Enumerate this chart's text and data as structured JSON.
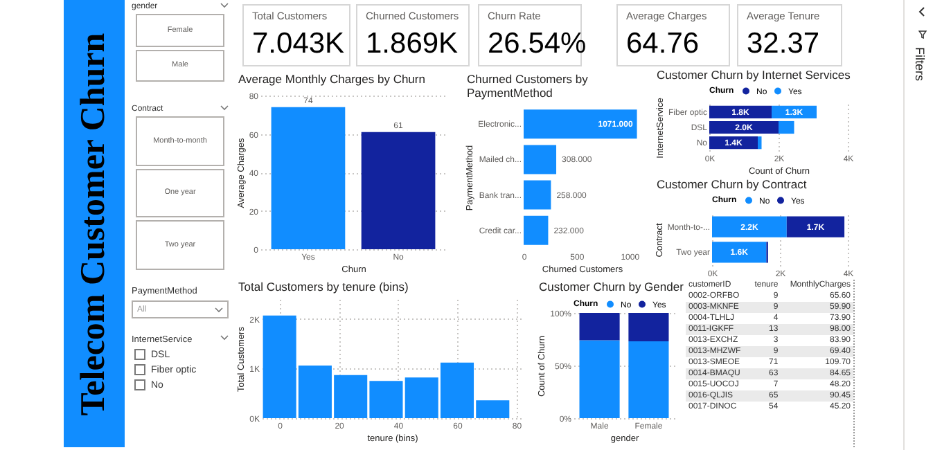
{
  "chart_data": [
    {
      "type": "other",
      "title": "Telecom Customer Churn"
    },
    {
      "type": "other",
      "title": "gender",
      "categories": [
        "Female",
        "Male"
      ]
    },
    {
      "type": "other",
      "title": "Contract",
      "categories": [
        "Month-to-month",
        "One year",
        "Two year"
      ]
    },
    {
      "type": "other",
      "title": "PaymentMethod",
      "categories": [
        "All"
      ]
    },
    {
      "type": "other",
      "title": "InternetService",
      "categories": [
        "DSL",
        "Fiber optic",
        "No"
      ]
    },
    {
      "type": "other",
      "title": "Total Customers",
      "annotations": [
        "7.043K"
      ]
    },
    {
      "type": "other",
      "title": "Churned Customers",
      "annotations": [
        "1.869K"
      ]
    },
    {
      "type": "other",
      "title": "Churn Rate",
      "annotations": [
        "26.54%"
      ]
    },
    {
      "type": "other",
      "title": "Average Charges",
      "annotations": [
        "64.76"
      ]
    },
    {
      "type": "other",
      "title": "Average Tenure",
      "annotations": [
        "32.37"
      ]
    },
    {
      "type": "bar",
      "title": "Average Monthly Charges by Churn",
      "categories": [
        "Yes",
        "No"
      ],
      "values": [
        74,
        61
      ],
      "colors": [
        "#118dff",
        "#12239e"
      ],
      "data_labels": true,
      "ylim": [
        0,
        80
      ],
      "yticks": [
        0,
        20,
        40,
        60,
        80
      ],
      "grid": "y",
      "xlabel": "Churn",
      "ylabel": "Average Charges"
    },
    {
      "type": "bar",
      "title": "Churned Customers by PaymentMethod",
      "orientation": "horizontal",
      "categories": [
        "Electronic...",
        "Mailed ch...",
        "Bank tran...",
        "Credit car..."
      ],
      "values": [
        1071,
        308,
        258,
        232
      ],
      "value_labels": [
        "1071.000",
        "308.000",
        "258.000",
        "232.000"
      ],
      "color": "#118dff",
      "xlim": [
        0,
        1100
      ],
      "xticks": [
        0,
        500,
        {
          "value": 1000,
          "label": "1000"
        }
      ],
      "xlabel": "Churned Customers",
      "ylabel": "PaymentMethod"
    },
    {
      "type": "bar",
      "title": "Customer Churn by Internet Services",
      "orientation": "horizontal",
      "stacked": true,
      "categories": [
        "Fiber optic",
        "DSL",
        "No"
      ],
      "series": [
        {
          "name": "No",
          "color": "#12239e",
          "values": [
            1800,
            2000,
            1400
          ],
          "value_labels": [
            "1.8K",
            "2.0K",
            "1.4K"
          ]
        },
        {
          "name": "Yes",
          "color": "#118dff",
          "values": [
            1300,
            450,
            110
          ],
          "value_labels": [
            "1.3K",
            null,
            null
          ]
        }
      ],
      "xlim": [
        0,
        4000
      ],
      "xticks": [
        {
          "value": 0,
          "label": "0K"
        },
        {
          "value": 2000,
          "label": "2K"
        },
        {
          "value": 4000,
          "label": "4K"
        }
      ],
      "grid": "x",
      "xlabel": "Count of Churn",
      "ylabel": "InternetService",
      "legend_title": "Churn",
      "legend": "top left"
    },
    {
      "type": "bar",
      "title": "Customer Churn by Contract",
      "orientation": "horizontal",
      "stacked": true,
      "categories": [
        "Month-to-...",
        "Two year"
      ],
      "series": [
        {
          "name": "No",
          "color": "#118dff",
          "values": [
            2200,
            1600
          ],
          "value_labels": [
            "2.2K",
            "1.6K"
          ]
        },
        {
          "name": "Yes",
          "color": "#12239e",
          "values": [
            1700,
            50
          ],
          "value_labels": [
            "1.7K",
            null
          ]
        }
      ],
      "xlim": [
        0,
        4000
      ],
      "xticks": [
        {
          "value": 0,
          "label": "0K"
        },
        {
          "value": 2000,
          "label": "2K"
        },
        {
          "value": 4000,
          "label": "4K"
        }
      ],
      "grid": "x",
      "ylabel": "Contract",
      "legend_title": "Churn",
      "legend": "top left"
    },
    {
      "type": "bar",
      "title": "Total Customers by tenure (bins)",
      "x": [
        0,
        12,
        24,
        36,
        48,
        60,
        72
      ],
      "values": [
        2070,
        1060,
        870,
        750,
        820,
        1120,
        360
      ],
      "color": "#118dff",
      "xlim": [
        -6,
        82
      ],
      "xticks": [
        0,
        20,
        40,
        60,
        80
      ],
      "ylim": [
        0,
        2400
      ],
      "yticks": [
        {
          "value": 0,
          "label": "0K"
        },
        {
          "value": 1000,
          "label": "1K"
        },
        {
          "value": 2000,
          "label": "2K"
        }
      ],
      "grid": true,
      "xlabel": "tenure (bins)",
      "ylabel": "Total Customers"
    },
    {
      "type": "bar",
      "title": "Customer Churn by Gender",
      "stacked": true,
      "categories": [
        "Male",
        "Female"
      ],
      "series": [
        {
          "name": "No",
          "color": "#118dff",
          "values": [
            0.74,
            0.73
          ]
        },
        {
          "name": "Yes",
          "color": "#12239e",
          "values": [
            0.26,
            0.27
          ]
        }
      ],
      "ylim": [
        0,
        1
      ],
      "yticks": [
        {
          "value": 0,
          "label": "0%"
        },
        {
          "value": 0.5,
          "label": "50%"
        },
        {
          "value": 1,
          "label": "100%"
        }
      ],
      "grid": "y",
      "xlabel": "gender",
      "ylabel": "Count of Churn",
      "legend_title": "Churn",
      "legend": "top"
    },
    {
      "type": "other",
      "xlabel": "customerID",
      "categories": [
        "0002-ORFBO",
        "0003-MKNFE",
        "0004-TLHLJ",
        "0011-IGKFF",
        "0013-EXCHZ",
        "0013-MHZWF",
        "0013-SMEOE",
        "0014-BMAQU",
        "0015-UOCOJ",
        "0016-QLJIS",
        "0017-DINOC"
      ],
      "series": [
        {
          "name": "tenure",
          "values": [
            9,
            9,
            4,
            13,
            3,
            9,
            71,
            63,
            7,
            65,
            54
          ]
        },
        {
          "name": "MonthlyCharges",
          "values": [
            65.6,
            59.9,
            73.9,
            98,
            83.9,
            69.4,
            109.7,
            84.65,
            48.2,
            90.45,
            45.2
          ],
          "value_labels": [
            "65.60",
            "59.90",
            "73.90",
            "98.00",
            "83.90",
            "69.40",
            "109.70",
            "84.65",
            "48.20",
            "90.45",
            "45.20"
          ]
        }
      ],
      "data_labels": true
    },
    {
      "type": "other",
      "title": "Filters"
    }
  ]
}
